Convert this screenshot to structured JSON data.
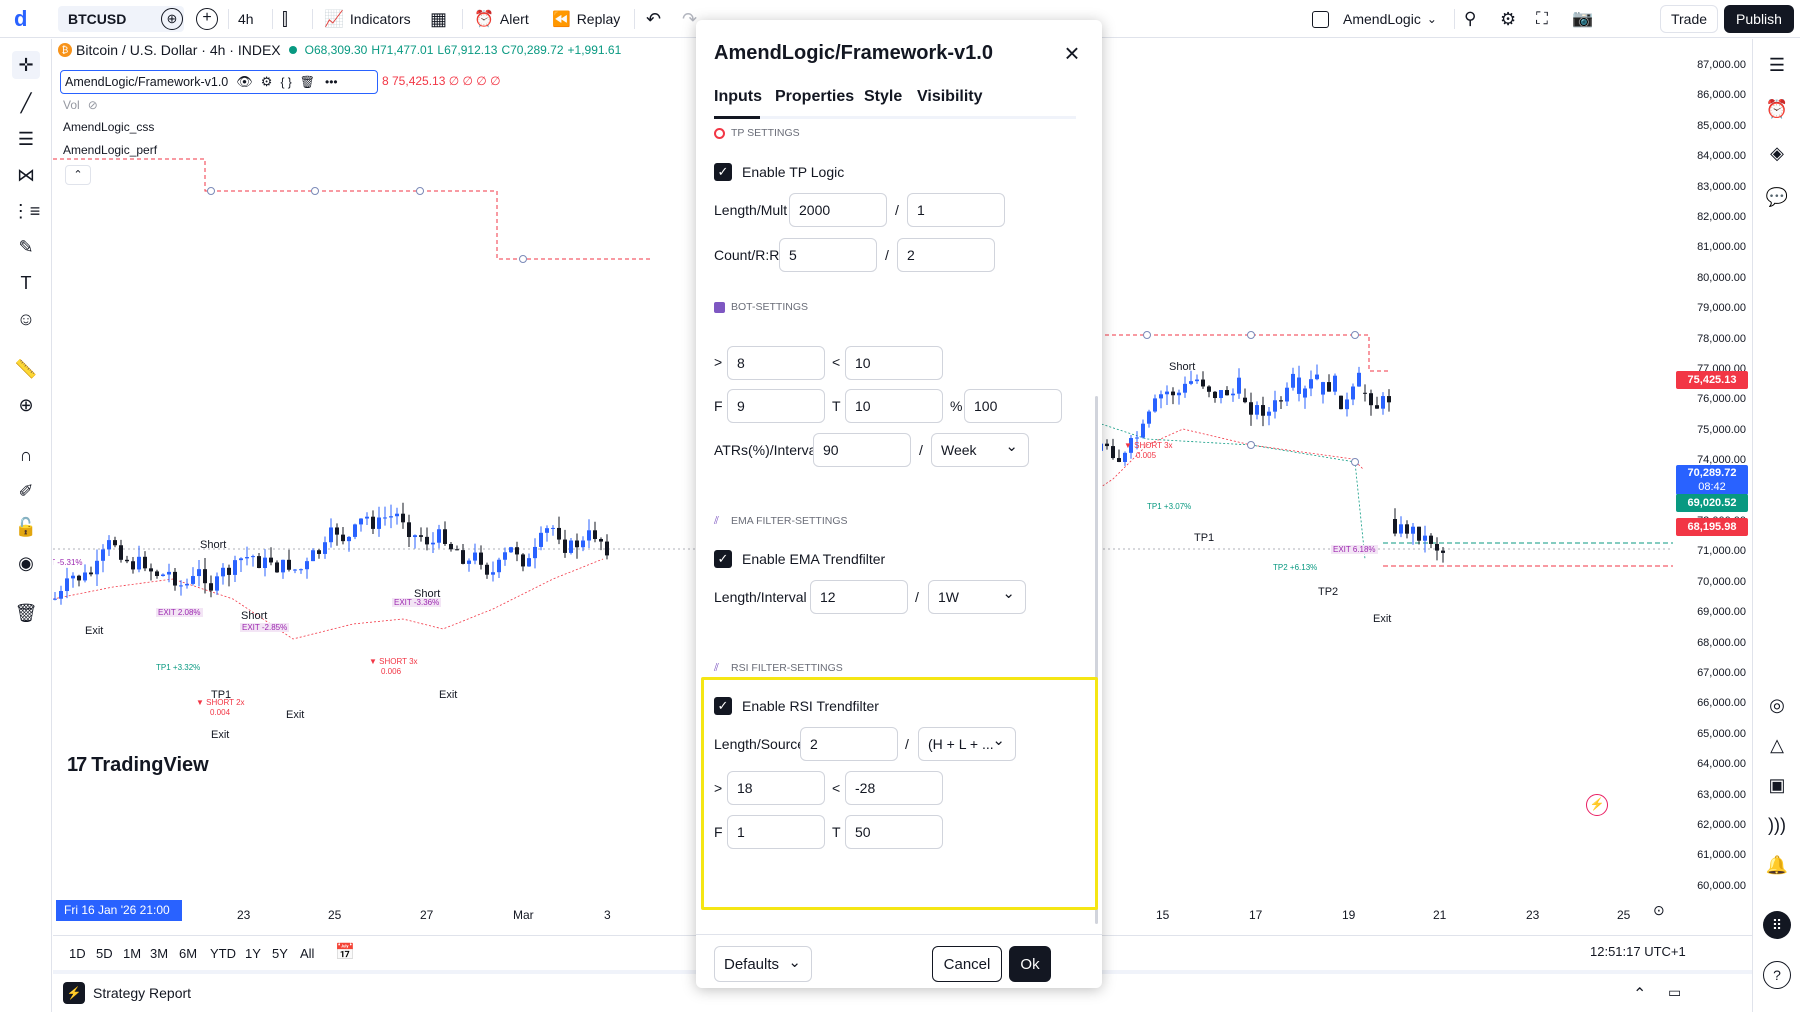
{
  "topbar": {
    "symbol": "BTCUSD",
    "interval": "4h",
    "indicators": "Indicators",
    "alert": "Alert",
    "replay": "Replay",
    "layout_name": "AmendLogic",
    "trade": "Trade",
    "publish": "Publish"
  },
  "legend": {
    "title": "Bitcoin / U.S. Dollar · 4h · INDEX",
    "o": "O68,309.30",
    "h": "H71,477.01",
    "l": "L67,912.13",
    "c": "C70,289.72",
    "chg": "+1,991.61",
    "indicator": "AmendLogic/Framework-v1.0",
    "ind_vals": "8  75,425.13  ∅ ∅ ∅ ∅",
    "vol": "Vol",
    "ind2": "AmendLogic_css",
    "ind3": "AmendLogic_perf"
  },
  "price_axis": {
    "labels": [
      "87,000.00",
      "86,000.00",
      "85,000.00",
      "84,000.00",
      "83,000.00",
      "82,000.00",
      "81,000.00",
      "80,000.00",
      "79,000.00",
      "78,000.00",
      "77,000.00",
      "76,000.00",
      "75,000.00",
      "74,000.00",
      "73,000.00",
      "72,000.00",
      "71,000.00",
      "70,000.00",
      "69,000.00",
      "68,000.00",
      "67,000.00",
      "66,000.00",
      "65,000.00",
      "64,000.00",
      "63,000.00",
      "62,000.00",
      "61,000.00",
      "60,000.00"
    ],
    "tag_upper": "75,425.13",
    "tag_current": "70,289.72",
    "tag_current_time": "08:42",
    "tag_green": "69,020.52",
    "tag_red": "68,195.98",
    "colors": {
      "red": "#f23645",
      "blue": "#2962ff",
      "green": "#089981"
    }
  },
  "date_axis": {
    "cursor_date": "Fri 16 Jan '26  21:00",
    "labels": [
      "23",
      "25",
      "27",
      "Mar",
      "3",
      "15",
      "17",
      "19",
      "21",
      "23",
      "25"
    ]
  },
  "timeframes": [
    "1D",
    "5D",
    "1M",
    "3M",
    "6M",
    "YTD",
    "1Y",
    "5Y",
    "All"
  ],
  "clock": "12:51:17 UTC+1",
  "strategy_report": "Strategy Report",
  "watermark": "TradingView",
  "chart_annotations": {
    "short1": "Short",
    "short2": "Short",
    "short3": "Short",
    "short4": "Short",
    "exit1": "Exit",
    "exit2": "Exit",
    "exit3": "Exit",
    "exit4": "Exit",
    "exit5": "Exit",
    "tp1a": "TP1",
    "tp1b": "TP1",
    "tp2": "TP2",
    "tp1_pct_a": "TP1 +3.32%",
    "tp1_pct_b": "TP1 +3.07%",
    "tp2_pct": "TP2 +6.13%",
    "exit_pct_a": "EXIT 2.08%",
    "exit_pct_b": "EXIT -2.85%",
    "exit_pct_c": "EXIT -3.36%",
    "exit_pct_d": "EXIT 6.18%",
    "short_lab_a": "▼ SHORT 3x",
    "short_lab_a2": "0.006",
    "short_lab_b": "▼ SHORT 3x",
    "short_lab_b2": "0.005",
    "short_lab_c": "▼ SHORT 2x",
    "short_lab_c2": "0.004",
    "left_pct": "IT -5.31%"
  },
  "modal": {
    "title": "AmendLogic/Framework-v1.0",
    "tabs": [
      "Inputs",
      "Properties",
      "Style",
      "Visibility"
    ],
    "tp_section": "TP SETTINGS",
    "enable_tp": "Enable TP Logic",
    "length_mult_label": "Length/Mult",
    "length_mult_a": "2000",
    "length_mult_b": "1",
    "count_rr_label": "Count/R:R",
    "count_rr_a": "5",
    "count_rr_b": "2",
    "bot_section": "BOT-SETTINGS",
    "gt_label": ">",
    "lt_label": "<",
    "bot_gt": "8",
    "bot_lt": "10",
    "f_label": "F",
    "t_label": "T",
    "pct_label": "%",
    "bot_f": "9",
    "bot_t": "10",
    "bot_pct": "100",
    "atrs_label": "ATRs(%)/Interval",
    "atrs_val": "90",
    "atrs_interval": "Week",
    "ema_section": "EMA FILTER-SETTINGS",
    "enable_ema": "Enable EMA Trendfilter",
    "ema_li_label": "Length/Interval",
    "ema_len": "12",
    "ema_int": "1W",
    "rsi_section": "RSI FILTER-SETTINGS",
    "enable_rsi": "Enable RSI Trendfilter",
    "rsi_ls_label": "Length/Source",
    "rsi_len": "2",
    "rsi_src": "(H + L + ...",
    "rsi_gt": "18",
    "rsi_lt": "-28",
    "rsi_f": "1",
    "rsi_t": "50",
    "slash": "/",
    "defaults": "Defaults",
    "cancel": "Cancel",
    "ok": "Ok"
  }
}
